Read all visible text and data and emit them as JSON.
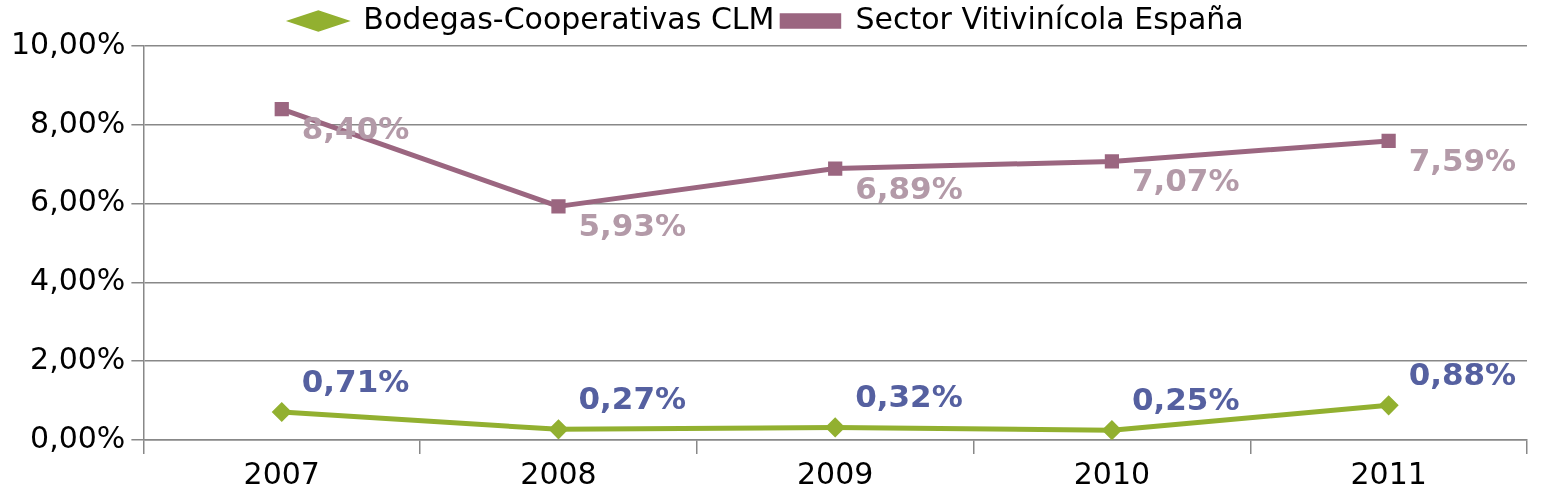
{
  "chart_data": {
    "type": "line",
    "categories": [
      "2007",
      "2008",
      "2009",
      "2010",
      "2011"
    ],
    "series": [
      {
        "name": "Bodegas-Cooperativas CLM",
        "color": "#92b030",
        "marker": "diamond",
        "values": [
          0.71,
          0.27,
          0.32,
          0.25,
          0.88
        ],
        "value_labels": [
          "0,71%",
          "0,27%",
          "0,32%",
          "0,25%",
          "0,88%"
        ]
      },
      {
        "name": "Sector Vitivinícola España",
        "color": "#9b6680",
        "marker": "square",
        "values": [
          8.4,
          5.93,
          6.89,
          7.07,
          7.59
        ],
        "value_labels": [
          "8,40%",
          "5,93%",
          "6,89%",
          "7,07%",
          "7,59%"
        ]
      }
    ],
    "ylim": [
      0,
      10
    ],
    "yticks": [
      {
        "value": 0,
        "label": "0,00%"
      },
      {
        "value": 2,
        "label": "2,00%"
      },
      {
        "value": 4,
        "label": "4,00%"
      },
      {
        "value": 6,
        "label": "6,00%"
      },
      {
        "value": 8,
        "label": "8,00%"
      },
      {
        "value": 10,
        "label": "10,00%"
      }
    ],
    "grid": "y",
    "legend": "top",
    "line_style": "solid"
  }
}
